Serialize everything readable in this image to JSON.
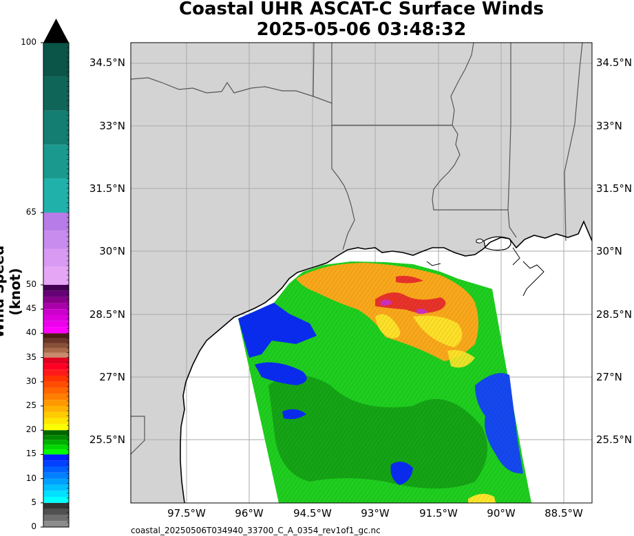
{
  "title": {
    "line1": "Coastal UHR ASCAT-C Surface Winds",
    "line2": "2025-05-06 03:48:32"
  },
  "colorbar": {
    "label": "Wind Speed (knot)",
    "ticks": [
      "0",
      "5",
      "10",
      "15",
      "20",
      "25",
      "30",
      "35",
      "40",
      "45",
      "50",
      "65",
      "100"
    ],
    "range": [
      0,
      100
    ],
    "segments": [
      {
        "from": 0,
        "to": 5,
        "colors": [
          "#8c8c8c",
          "#6e6e6e",
          "#505050",
          "#333333"
        ]
      },
      {
        "from": 5,
        "to": 10,
        "colors": [
          "#00ffff",
          "#00e0ff",
          "#00c0ff",
          "#00a0ff"
        ]
      },
      {
        "from": 10,
        "to": 15,
        "colors": [
          "#0080ff",
          "#0060ff",
          "#0040ff",
          "#0020ff"
        ]
      },
      {
        "from": 15,
        "to": 20,
        "colors": [
          "#00ff00",
          "#00d800",
          "#00b000",
          "#008800",
          "#006600"
        ]
      },
      {
        "from": 20,
        "to": 25,
        "colors": [
          "#ffff00",
          "#ffe600",
          "#ffcc00",
          "#ffb300"
        ]
      },
      {
        "from": 25,
        "to": 30,
        "colors": [
          "#ff9900",
          "#ff7f00",
          "#ff6600",
          "#ff4d00"
        ]
      },
      {
        "from": 30,
        "to": 35,
        "colors": [
          "#ff3300",
          "#ff1a1a",
          "#ff0022",
          "#e00020"
        ]
      },
      {
        "from": 35,
        "to": 40,
        "colors": [
          "#c88a6a",
          "#a86a4a",
          "#88503a",
          "#6a3628",
          "#4a1c14"
        ]
      },
      {
        "from": 40,
        "to": 45,
        "colors": [
          "#ff00ff",
          "#ee00ee",
          "#dd00dd",
          "#cc00cc"
        ]
      },
      {
        "from": 45,
        "to": 50,
        "colors": [
          "#aa00aa",
          "#880088",
          "#660077",
          "#440055"
        ]
      },
      {
        "from": 50,
        "to": 65,
        "colors": [
          "#e6a6f6",
          "#d89af2",
          "#c88cee",
          "#b87ce8"
        ]
      },
      {
        "from": 65,
        "to": 100,
        "colors": [
          "#20b2aa",
          "#1a9a8e",
          "#157e72",
          "#0f6658",
          "#0a5548"
        ]
      }
    ]
  },
  "map": {
    "lat_labels": [
      "34.5°N",
      "33°N",
      "31.5°N",
      "30°N",
      "28.5°N",
      "27°N",
      "25.5°N"
    ],
    "lon_labels": [
      "97.5°W",
      "96°W",
      "94.5°W",
      "93°W",
      "91.5°W",
      "90°W",
      "88.5°W"
    ],
    "colors": {
      "land": "#d3d3d3",
      "ocean": "#ffffff",
      "grid": "#aaaaaa",
      "boundary": "#555555",
      "coast": "#000000"
    }
  },
  "swath_regions": [
    {
      "name": "background",
      "color": "#1fce1f"
    },
    {
      "name": "dark-green",
      "color": "#149c14"
    },
    {
      "name": "blue-west",
      "color": "#0a2cf0"
    },
    {
      "name": "blue-southeast",
      "color": "#1548ef"
    },
    {
      "name": "blue-south",
      "color": "#0a2cf0"
    },
    {
      "name": "orange-north",
      "color": "#f9a81b"
    },
    {
      "name": "yellow-north",
      "color": "#fde52a"
    },
    {
      "name": "red-core",
      "color": "#e8332a"
    },
    {
      "name": "magenta-core",
      "color": "#cc2fc0"
    }
  ],
  "filename": "coastal_20250506T034940_33700_C_A_0354_rev1of1_gc.nc"
}
